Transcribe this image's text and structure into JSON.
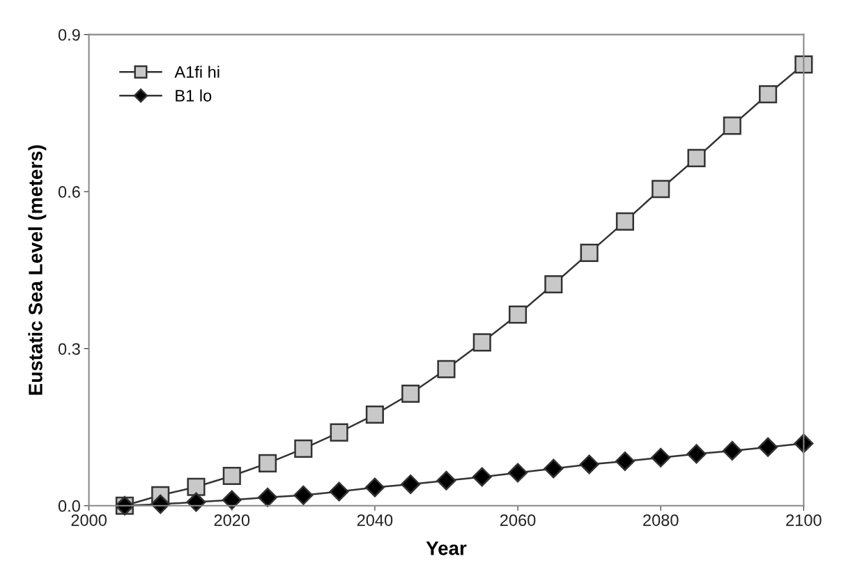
{
  "chart_data": {
    "type": "line",
    "xlabel": "Year",
    "ylabel": "Eustatic Sea Level (meters)",
    "x": [
      2005,
      2010,
      2015,
      2020,
      2025,
      2030,
      2035,
      2040,
      2045,
      2050,
      2055,
      2060,
      2065,
      2070,
      2075,
      2080,
      2085,
      2090,
      2095,
      2100
    ],
    "series": [
      {
        "name": "A1fi hi",
        "color": "#c8c8c8",
        "marker": "square",
        "values": [
          0,
          0.02,
          0.036,
          0.057,
          0.081,
          0.109,
          0.14,
          0.174,
          0.214,
          0.261,
          0.312,
          0.365,
          0.423,
          0.483,
          0.543,
          0.605,
          0.664,
          0.726,
          0.786,
          0.843
        ]
      },
      {
        "name": "B1 lo",
        "color": "#000000",
        "marker": "diamond",
        "values": [
          0,
          0.003,
          0.007,
          0.011,
          0.016,
          0.02,
          0.027,
          0.035,
          0.041,
          0.048,
          0.055,
          0.063,
          0.071,
          0.079,
          0.085,
          0.092,
          0.099,
          0.105,
          0.112,
          0.119
        ]
      }
    ],
    "xlim": [
      2000,
      2100
    ],
    "xticks": [
      2000,
      2020,
      2040,
      2060,
      2080,
      2100
    ],
    "ylim": [
      0,
      0.9
    ],
    "yticks": [
      {
        "value": 0,
        "label": "0.0"
      },
      0.3,
      0.6,
      0.9
    ],
    "grid": false,
    "legend": "top left"
  }
}
